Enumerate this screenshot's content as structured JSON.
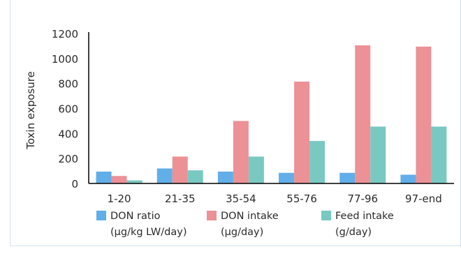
{
  "chart_data": {
    "type": "bar",
    "ylabel": "Toxin exposure",
    "ylim": [
      0,
      1200
    ],
    "yticks": [
      0,
      200,
      400,
      600,
      800,
      1000,
      1200
    ],
    "grid": false,
    "legend_position": "bottom",
    "categories": [
      "1-20",
      "21-35",
      "35-54",
      "55-76",
      "77-96",
      "97-end"
    ],
    "series": [
      {
        "name": "DON ratio",
        "unit": "(µg/kg LW/day)",
        "color": "#62aee8",
        "values": [
          95,
          120,
          95,
          85,
          85,
          70
        ]
      },
      {
        "name": "DON intake",
        "unit": "(µg/day)",
        "color": "#ec9196",
        "values": [
          60,
          215,
          500,
          815,
          1105,
          1095
        ]
      },
      {
        "name": "Feed intake",
        "unit": "(g/day)",
        "color": "#79c9c2",
        "values": [
          25,
          105,
          215,
          340,
          455,
          455
        ]
      }
    ]
  }
}
